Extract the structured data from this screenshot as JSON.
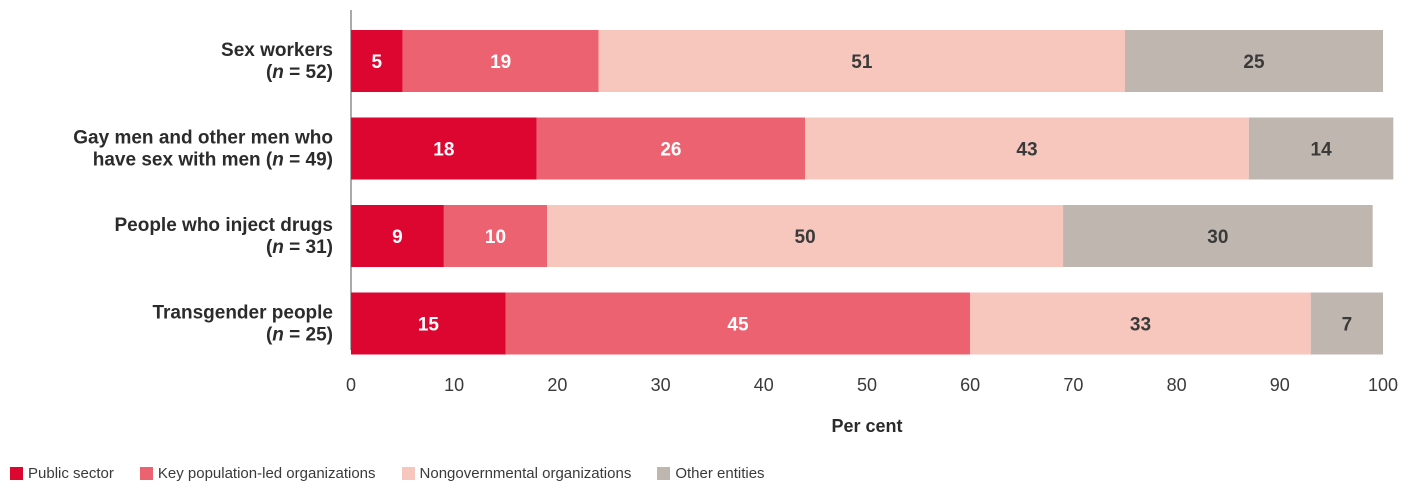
{
  "chart_data": {
    "type": "bar",
    "orientation": "horizontal",
    "stacked": true,
    "categories": [
      [
        "Sex workers",
        "(n = 52)"
      ],
      [
        "Gay men and other men who",
        "have sex with men (n = 49)"
      ],
      [
        "People who inject drugs",
        "(n = 31)"
      ],
      [
        "Transgender people",
        "(n = 25)"
      ]
    ],
    "series": [
      {
        "name": "Public sector",
        "color": "#dd0630",
        "label_color": "#ffffff",
        "values": [
          5,
          18,
          9,
          15
        ]
      },
      {
        "name": "Key population-led organizations",
        "color": "#ec6270",
        "label_color": "#ffffff",
        "values": [
          19,
          26,
          10,
          45
        ]
      },
      {
        "name": "Nongovernmental organizations",
        "color": "#f7c6bd",
        "label_color": "#3a3a3a",
        "values": [
          51,
          43,
          50,
          33
        ]
      },
      {
        "name": "Other entities",
        "color": "#c0b6b0",
        "label_color": "#3a3a3a",
        "values": [
          25,
          14,
          30,
          7
        ]
      }
    ],
    "xlabel": "Per cent",
    "ylabel": "",
    "xlim": [
      0,
      100
    ],
    "xticks": [
      "0",
      "10",
      "20",
      "30",
      "40",
      "50",
      "60",
      "70",
      "80",
      "90",
      "100"
    ],
    "grid": false,
    "legend_position": "bottom-left"
  }
}
